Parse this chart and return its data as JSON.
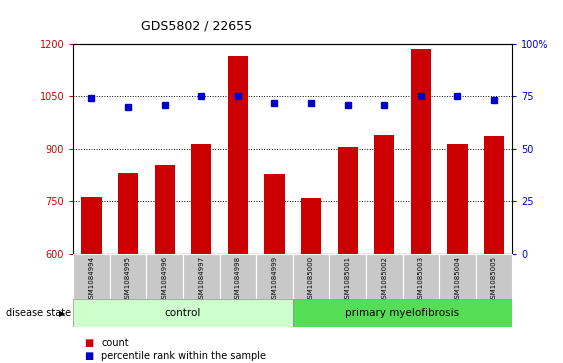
{
  "title": "GDS5802 / 22655",
  "samples": [
    "GSM1084994",
    "GSM1084995",
    "GSM1084996",
    "GSM1084997",
    "GSM1084998",
    "GSM1084999",
    "GSM1085000",
    "GSM1085001",
    "GSM1085002",
    "GSM1085003",
    "GSM1085004",
    "GSM1085005"
  ],
  "counts": [
    763,
    830,
    855,
    915,
    1165,
    828,
    760,
    905,
    940,
    1185,
    913,
    937
  ],
  "percentiles": [
    74,
    70,
    71,
    75,
    75,
    72,
    72,
    71,
    71,
    75,
    75,
    73
  ],
  "ylim_left": [
    600,
    1200
  ],
  "ylim_right": [
    0,
    100
  ],
  "yticks_left": [
    600,
    750,
    900,
    1050,
    1200
  ],
  "yticks_right": [
    0,
    25,
    50,
    75,
    100
  ],
  "bar_color": "#cc0000",
  "dot_color": "#0000cc",
  "grid_values": [
    750,
    900,
    1050
  ],
  "n_control": 6,
  "n_disease": 6,
  "control_label": "control",
  "disease_label": "primary myelofibrosis",
  "disease_state_label": "disease state",
  "legend_count_label": "count",
  "legend_percentile_label": "percentile rank within the sample",
  "control_color": "#ccffcc",
  "disease_color": "#55dd55",
  "xlabel_bg": "#c8c8c8",
  "bar_width": 0.55
}
